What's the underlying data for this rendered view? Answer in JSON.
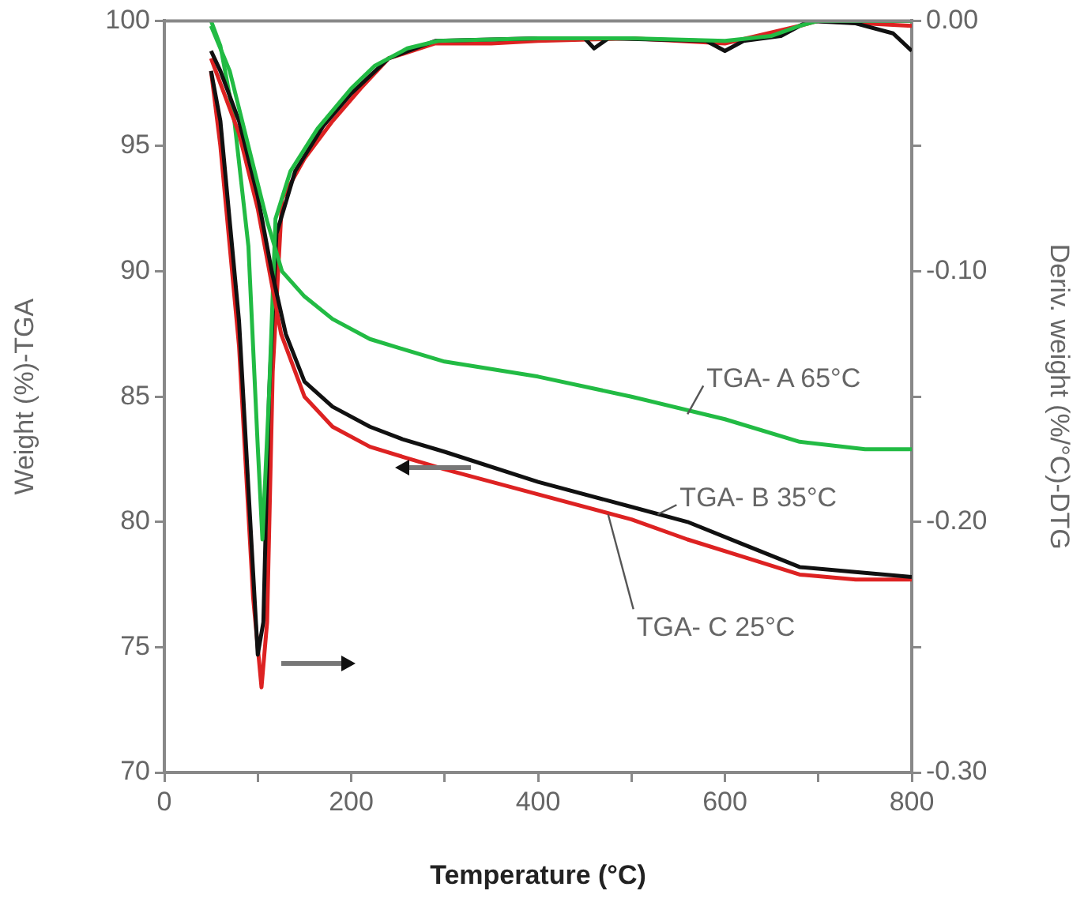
{
  "chart_data": {
    "type": "line",
    "xlabel": "Temperature (°C)",
    "ylabel": "Weight (%)-TGA",
    "y2label": "Deriv. weight (%/°C)-DTG",
    "xlim": [
      0,
      800
    ],
    "xticks": [
      0,
      {
        "value": 100,
        "label": null
      },
      200,
      {
        "value": 300,
        "label": null
      },
      400,
      {
        "value": 500,
        "label": null
      },
      600,
      {
        "value": 700,
        "label": null
      },
      800
    ],
    "ylim": [
      70,
      100
    ],
    "yticks": [
      70,
      75,
      80,
      85,
      90,
      95,
      100
    ],
    "y2lim": [
      -0.3,
      0
    ],
    "y2ticks": [
      {
        "value": -0.3,
        "label": "-0.30"
      },
      {
        "value": -0.25,
        "label": null
      },
      {
        "value": -0.2,
        "label": "-0.20"
      },
      {
        "value": -0.15,
        "label": null
      },
      {
        "value": -0.1,
        "label": "-0.10"
      },
      {
        "value": -0.05,
        "label": null
      },
      {
        "value": 0,
        "label": "0.00"
      }
    ],
    "grid": false,
    "legend": false,
    "marker": "none",
    "line_style": "solid",
    "series": [
      {
        "color": "#22bb44",
        "x": [
          50,
          70,
          90,
          110,
          126,
          150,
          180,
          220,
          255,
          300,
          400,
          500,
          600,
          680,
          750,
          800
        ],
        "values": [
          99.8,
          98,
          95,
          92,
          90,
          89,
          88.1,
          87.3,
          86.9,
          86.4,
          85.8,
          85,
          84.1,
          83.2,
          82.9,
          82.9
        ]
      },
      {
        "color": "#111111",
        "x": [
          50,
          60,
          80,
          100,
          115,
          130,
          150,
          180,
          220,
          255,
          300,
          400,
          500,
          560,
          620,
          680,
          740,
          800
        ],
        "values": [
          98.8,
          98,
          96,
          93,
          90,
          87.5,
          85.6,
          84.6,
          83.8,
          83.3,
          82.8,
          81.6,
          80.6,
          80,
          79.1,
          78.2,
          78,
          77.8
        ]
      },
      {
        "color": "#dd2222",
        "x": [
          50,
          80,
          100,
          115,
          125,
          150,
          180,
          220,
          255,
          300,
          400,
          500,
          560,
          620,
          680,
          740,
          800
        ],
        "values": [
          98.5,
          95.5,
          92.5,
          89.5,
          87.5,
          85,
          83.8,
          83,
          82.6,
          82.1,
          81.1,
          80.1,
          79.3,
          78.6,
          77.9,
          77.7,
          77.7
        ]
      },
      {
        "axis": "y2",
        "color": "#22bb44",
        "x": [
          50,
          60,
          75,
          90,
          100,
          105,
          112,
          119,
          135,
          164,
          200,
          225,
          260,
          293,
          400,
          500,
          600,
          650,
          680,
          700,
          800
        ],
        "values": [
          0,
          -0.01,
          -0.04,
          -0.09,
          -0.17,
          -0.207,
          -0.15,
          -0.079,
          -0.06,
          -0.043,
          -0.027,
          -0.018,
          -0.011,
          -0.008,
          -0.007,
          -0.007,
          -0.008,
          -0.006,
          -0.002,
          0,
          0
        ]
      },
      {
        "axis": "y2",
        "color": "#111111",
        "x": [
          50,
          60,
          80,
          95,
          100,
          106,
          112,
          120,
          140,
          170,
          200,
          240,
          290,
          400,
          450,
          460,
          475,
          580,
          600,
          620,
          660,
          690,
          740,
          780,
          800
        ],
        "values": [
          -0.02,
          -0.04,
          -0.12,
          -0.22,
          -0.253,
          -0.24,
          -0.15,
          -0.085,
          -0.06,
          -0.042,
          -0.029,
          -0.015,
          -0.008,
          -0.007,
          -0.007,
          -0.011,
          -0.007,
          -0.008,
          -0.012,
          -0.008,
          -0.006,
          0,
          -0.001,
          -0.005,
          -0.012
        ]
      },
      {
        "axis": "y2",
        "color": "#dd2222",
        "x": [
          50,
          60,
          80,
          95,
          104,
          110,
          116,
          126,
          150,
          180,
          210,
          240,
          290,
          350,
          400,
          500,
          600,
          680,
          700,
          800
        ],
        "values": [
          -0.02,
          -0.05,
          -0.13,
          -0.23,
          -0.266,
          -0.24,
          -0.14,
          -0.071,
          -0.055,
          -0.04,
          -0.027,
          -0.015,
          -0.009,
          -0.009,
          -0.008,
          -0.007,
          -0.009,
          -0.002,
          0,
          -0.002
        ]
      }
    ],
    "annotations": [
      {
        "text": "TGA- A 65°C",
        "x": 560,
        "y": 84.3
      },
      {
        "text": "TGA- B 35°C",
        "x": 528,
        "y": 80.3
      },
      {
        "text": "TGA- C 25°C",
        "x": 475,
        "y": 80.3
      }
    ]
  }
}
